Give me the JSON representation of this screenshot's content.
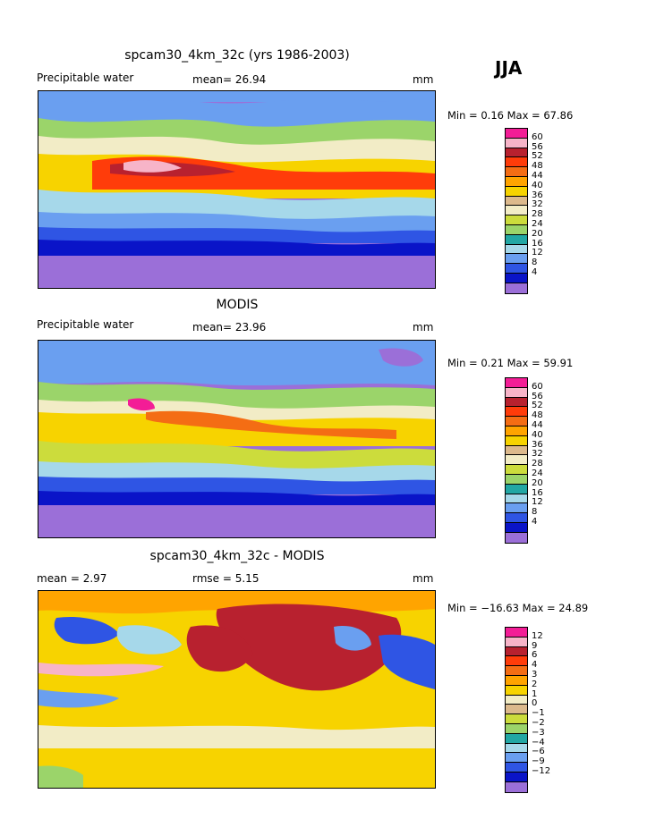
{
  "season": "JJA",
  "palette_main": [
    "#9b6fd8",
    "#0a14c8",
    "#2f55e4",
    "#6a9ff0",
    "#a6d8ea",
    "#22a7a4",
    "#9bd46a",
    "#ccdc3c",
    "#f2ecc6",
    "#dcb98c",
    "#f7d300",
    "#ffa400",
    "#f46d14",
    "#ff3c0a",
    "#b8212f",
    "#f7b4c8",
    "#f31d96"
  ],
  "palette_diff": [
    "#9b6fd8",
    "#0a14c8",
    "#2f55e4",
    "#6a9ff0",
    "#a6d8ea",
    "#22a7a4",
    "#9bd46a",
    "#ccdc3c",
    "#dcb98c",
    "#f2ecc6",
    "#f7d300",
    "#ffa400",
    "#f46d14",
    "#ff3c0a",
    "#b8212f",
    "#f7b4c8",
    "#f31d96"
  ],
  "panels": [
    {
      "title": "spcam30_4km_32c (yrs 1986-2003)",
      "left_label": "Precipitable water",
      "mid_label": "mean=  26.94",
      "unit": "mm",
      "minmax": "Min =   0.16 Max =  67.86",
      "ticks": [
        "60",
        "56",
        "52",
        "48",
        "44",
        "40",
        "36",
        "32",
        "28",
        "24",
        "20",
        "16",
        "12",
        "8",
        "4"
      ]
    },
    {
      "title": "MODIS",
      "left_label": "Precipitable water",
      "mid_label": "mean=  23.96",
      "unit": "mm",
      "minmax": "Min =   0.21 Max =  59.91",
      "ticks": [
        "60",
        "56",
        "52",
        "48",
        "44",
        "40",
        "36",
        "32",
        "28",
        "24",
        "20",
        "16",
        "12",
        "8",
        "4"
      ]
    },
    {
      "title": "spcam30_4km_32c - MODIS",
      "left_label": "mean =    2.97",
      "mid_label": "rmse =    5.15",
      "unit": "mm",
      "minmax": "Min = −16.63 Max =  24.89",
      "ticks": [
        "12",
        "9",
        "6",
        "4",
        "3",
        "2",
        "1",
        "0",
        "−1",
        "−2",
        "−3",
        "−4",
        "−6",
        "−9",
        "−12"
      ]
    }
  ]
}
